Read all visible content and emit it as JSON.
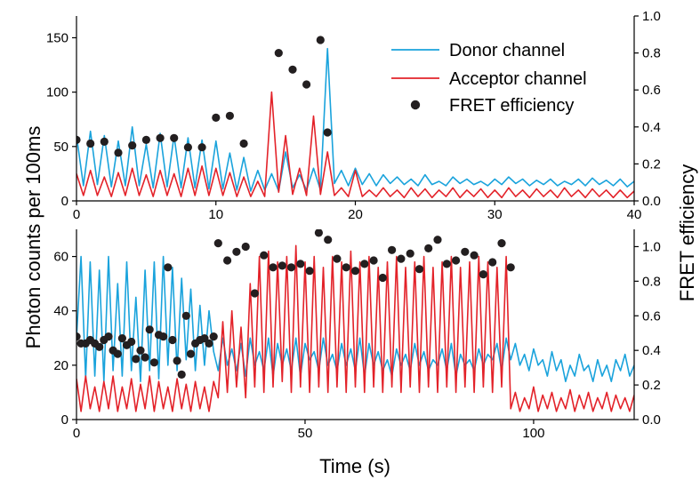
{
  "chart_data": [
    {
      "type": "line",
      "panel": "top",
      "xlim": [
        0,
        40
      ],
      "ylim": [
        0,
        170
      ],
      "y2lim": [
        0,
        1.0
      ],
      "x_ticks": [
        "0",
        "10",
        "20",
        "30",
        "40"
      ],
      "y_ticks": [
        "0",
        "50",
        "100",
        "150"
      ],
      "y2_ticks": [
        "0.0",
        "0.2",
        "0.4",
        "0.6",
        "0.8",
        "1.0"
      ],
      "legend_position": "top-right",
      "series": [
        {
          "name": "Donor channel",
          "color": "#1aa3dc",
          "axis": "left",
          "x": [
            0,
            0.5,
            1,
            1.5,
            2,
            2.5,
            3,
            3.5,
            4,
            4.5,
            5,
            5.5,
            6,
            6.5,
            7,
            7.5,
            8,
            8.5,
            9,
            9.5,
            10,
            10.5,
            11,
            11.5,
            12,
            12.5,
            13,
            13.5,
            14,
            14.5,
            15,
            15.5,
            16,
            16.5,
            17,
            17.5,
            18,
            18.5,
            19,
            19.5,
            20,
            20.5,
            21,
            21.5,
            22,
            22.5,
            23,
            23.5,
            24,
            24.5,
            25,
            25.5,
            26,
            26.5,
            27,
            27.5,
            28,
            28.5,
            29,
            29.5,
            30,
            30.5,
            31,
            31.5,
            32,
            32.5,
            33,
            33.5,
            34,
            34.5,
            35,
            35.5,
            36,
            36.5,
            37,
            37.5,
            38,
            38.5,
            39,
            39.5,
            40
          ],
          "values": [
            60,
            14,
            64,
            15,
            60,
            13,
            55,
            14,
            68,
            14,
            52,
            12,
            62,
            13,
            60,
            12,
            58,
            12,
            56,
            11,
            55,
            11,
            44,
            10,
            40,
            9,
            28,
            10,
            25,
            9,
            45,
            12,
            24,
            10,
            30,
            10,
            140,
            16,
            28,
            14,
            30,
            15,
            25,
            14,
            24,
            16,
            22,
            15,
            20,
            14,
            24,
            15,
            18,
            14,
            22,
            16,
            20,
            15,
            18,
            14,
            20,
            15,
            22,
            16,
            20,
            14,
            19,
            15,
            20,
            14,
            18,
            15,
            20,
            14,
            21,
            15,
            19,
            14,
            20,
            13,
            18
          ]
        },
        {
          "name": "Acceptor channel",
          "color": "#e32229",
          "axis": "left",
          "x": [
            0,
            0.5,
            1,
            1.5,
            2,
            2.5,
            3,
            3.5,
            4,
            4.5,
            5,
            5.5,
            6,
            6.5,
            7,
            7.5,
            8,
            8.5,
            9,
            9.5,
            10,
            10.5,
            11,
            11.5,
            12,
            12.5,
            13,
            13.5,
            14,
            14.5,
            15,
            15.5,
            16,
            16.5,
            17,
            17.5,
            18,
            18.5,
            19,
            19.5,
            20,
            20.5,
            21,
            21.5,
            22,
            22.5,
            23,
            23.5,
            24,
            24.5,
            25,
            25.5,
            26,
            26.5,
            27,
            27.5,
            28,
            28.5,
            29,
            29.5,
            30,
            30.5,
            31,
            31.5,
            32,
            32.5,
            33,
            33.5,
            34,
            34.5,
            35,
            35.5,
            36,
            36.5,
            37,
            37.5,
            38,
            38.5,
            39,
            39.5,
            40
          ],
          "values": [
            25,
            5,
            28,
            5,
            22,
            4,
            26,
            5,
            30,
            5,
            24,
            4,
            28,
            5,
            25,
            4,
            30,
            5,
            32,
            5,
            30,
            5,
            26,
            4,
            22,
            4,
            18,
            4,
            100,
            8,
            60,
            6,
            30,
            5,
            78,
            6,
            45,
            5,
            12,
            4,
            28,
            4,
            10,
            4,
            12,
            4,
            10,
            3,
            12,
            4,
            11,
            3,
            10,
            4,
            12,
            3,
            10,
            4,
            11,
            3,
            10,
            3,
            12,
            4,
            10,
            3,
            11,
            4,
            10,
            3,
            12,
            4,
            10,
            3,
            11,
            4,
            10,
            3,
            10,
            3,
            9
          ]
        },
        {
          "name": "FRET efficiency",
          "color": "#231f20",
          "axis": "right",
          "x": [
            0,
            1,
            2,
            3,
            4,
            5,
            6,
            7,
            8,
            9,
            10,
            11,
            12,
            14.5,
            15.5,
            16.5,
            17.5,
            18
          ],
          "values": [
            0.33,
            0.31,
            0.32,
            0.26,
            0.3,
            0.33,
            0.34,
            0.34,
            0.29,
            0.29,
            0.45,
            0.46,
            0.31,
            0.8,
            0.71,
            0.63,
            0.87,
            0.37
          ]
        }
      ]
    },
    {
      "type": "line",
      "panel": "bottom",
      "xlim": [
        0,
        122
      ],
      "ylim": [
        0,
        70
      ],
      "y2lim": [
        0,
        1.1
      ],
      "x_ticks": [
        "0",
        "50",
        "100"
      ],
      "y_ticks": [
        "0",
        "20",
        "40",
        "60"
      ],
      "y2_ticks": [
        "0.0",
        "0.2",
        "0.4",
        "0.6",
        "0.8",
        "1.0"
      ],
      "xlabel": "Time (s)",
      "series": [
        {
          "name": "Donor channel",
          "color": "#1aa3dc",
          "axis": "left",
          "x": [
            0,
            1,
            2,
            3,
            4,
            5,
            6,
            7,
            8,
            9,
            10,
            11,
            12,
            13,
            14,
            15,
            16,
            17,
            18,
            19,
            20,
            21,
            22,
            23,
            24,
            25,
            26,
            27,
            28,
            29,
            30,
            31,
            32,
            33,
            34,
            35,
            36,
            37,
            38,
            39,
            40,
            41,
            42,
            43,
            44,
            45,
            46,
            47,
            48,
            49,
            50,
            51,
            52,
            53,
            54,
            55,
            56,
            57,
            58,
            59,
            60,
            61,
            62,
            63,
            64,
            65,
            66,
            67,
            68,
            69,
            70,
            71,
            72,
            73,
            74,
            75,
            76,
            77,
            78,
            79,
            80,
            81,
            82,
            83,
            84,
            85,
            86,
            87,
            88,
            89,
            90,
            91,
            92,
            93,
            94,
            95,
            96,
            97,
            98,
            99,
            100,
            101,
            102,
            103,
            104,
            105,
            106,
            107,
            108,
            109,
            110,
            111,
            112,
            113,
            114,
            115,
            116,
            117,
            118,
            119,
            120,
            121,
            122
          ],
          "values": [
            30,
            60,
            15,
            58,
            16,
            55,
            14,
            60,
            18,
            50,
            16,
            58,
            18,
            45,
            14,
            55,
            18,
            58,
            15,
            60,
            20,
            56,
            18,
            52,
            22,
            48,
            18,
            42,
            20,
            40,
            25,
            18,
            30,
            20,
            26,
            18,
            28,
            16,
            30,
            20,
            25,
            18,
            30,
            16,
            28,
            20,
            26,
            18,
            30,
            16,
            28,
            22,
            25,
            18,
            30,
            20,
            24,
            18,
            28,
            20,
            26,
            18,
            30,
            16,
            28,
            20,
            25,
            18,
            22,
            16,
            26,
            20,
            24,
            18,
            28,
            20,
            25,
            18,
            22,
            20,
            26,
            18,
            28,
            16,
            24,
            20,
            22,
            18,
            26,
            20,
            24,
            22,
            28,
            18,
            30,
            22,
            28,
            20,
            24,
            18,
            26,
            20,
            22,
            16,
            25,
            18,
            22,
            14,
            20,
            16,
            24,
            18,
            20,
            14,
            22,
            16,
            20,
            14,
            22,
            18,
            24,
            16,
            20
          ]
        },
        {
          "name": "Acceptor channel",
          "color": "#e32229",
          "axis": "left",
          "x": [
            0,
            1,
            2,
            3,
            4,
            5,
            6,
            7,
            8,
            9,
            10,
            11,
            12,
            13,
            14,
            15,
            16,
            17,
            18,
            19,
            20,
            21,
            22,
            23,
            24,
            25,
            26,
            27,
            28,
            29,
            30,
            31,
            32,
            33,
            34,
            35,
            36,
            37,
            38,
            39,
            40,
            41,
            42,
            43,
            44,
            45,
            46,
            47,
            48,
            49,
            50,
            51,
            52,
            53,
            54,
            55,
            56,
            57,
            58,
            59,
            60,
            61,
            62,
            63,
            64,
            65,
            66,
            67,
            68,
            69,
            70,
            71,
            72,
            73,
            74,
            75,
            76,
            77,
            78,
            79,
            80,
            81,
            82,
            83,
            84,
            85,
            86,
            87,
            88,
            89,
            90,
            91,
            92,
            93,
            94,
            95,
            96,
            97,
            98,
            99,
            100,
            101,
            102,
            103,
            104,
            105,
            106,
            107,
            108,
            109,
            110,
            111,
            112,
            113,
            114,
            115,
            116,
            117,
            118,
            119,
            120,
            121,
            122
          ],
          "values": [
            15,
            3,
            16,
            4,
            12,
            3,
            14,
            4,
            16,
            3,
            12,
            4,
            15,
            3,
            13,
            4,
            16,
            3,
            14,
            4,
            12,
            3,
            15,
            4,
            13,
            3,
            14,
            4,
            12,
            3,
            14,
            8,
            36,
            10,
            40,
            12,
            34,
            8,
            50,
            12,
            60,
            10,
            62,
            12,
            58,
            14,
            60,
            10,
            64,
            12,
            58,
            10,
            60,
            12,
            56,
            10,
            60,
            12,
            58,
            10,
            62,
            12,
            58,
            10,
            60,
            12,
            56,
            10,
            58,
            12,
            60,
            10,
            56,
            12,
            58,
            10,
            60,
            12,
            56,
            10,
            58,
            12,
            60,
            10,
            56,
            12,
            58,
            10,
            60,
            12,
            58,
            10,
            56,
            12,
            60,
            4,
            10,
            3,
            8,
            4,
            12,
            3,
            9,
            4,
            10,
            3,
            8,
            4,
            11,
            3,
            9,
            4,
            10,
            3,
            8,
            4,
            10,
            3,
            9,
            4,
            8,
            3,
            9
          ]
        },
        {
          "name": "FRET efficiency",
          "color": "#231f20",
          "axis": "right",
          "x": [
            0,
            1,
            2,
            3,
            4,
            5,
            6,
            7,
            8,
            9,
            10,
            11,
            12,
            13,
            14,
            15,
            16,
            17,
            18,
            19,
            20,
            21,
            22,
            23,
            24,
            25,
            26,
            27,
            28,
            29,
            30,
            31,
            33,
            35,
            37,
            39,
            41,
            43,
            45,
            47,
            49,
            51,
            53,
            55,
            57,
            59,
            61,
            63,
            65,
            67,
            69,
            71,
            73,
            75,
            77,
            79,
            81,
            83,
            85,
            87,
            89,
            91,
            93,
            95
          ],
          "values": [
            0.48,
            0.44,
            0.44,
            0.46,
            0.44,
            0.42,
            0.46,
            0.48,
            0.4,
            0.38,
            0.47,
            0.43,
            0.45,
            0.35,
            0.4,
            0.36,
            0.52,
            0.33,
            0.49,
            0.48,
            0.88,
            0.46,
            0.34,
            0.26,
            0.6,
            0.38,
            0.44,
            0.46,
            0.47,
            0.44,
            0.48,
            1.02,
            0.92,
            0.97,
            1.0,
            0.73,
            0.95,
            0.88,
            0.89,
            0.88,
            0.9,
            0.86,
            1.08,
            1.04,
            0.93,
            0.88,
            0.86,
            0.9,
            0.92,
            0.82,
            0.98,
            0.93,
            0.96,
            0.87,
            0.99,
            1.04,
            0.9,
            0.92,
            0.97,
            0.95,
            0.84,
            0.91,
            1.02,
            0.88
          ]
        }
      ]
    }
  ],
  "figure": {
    "ylabel": "Photon counts per 100ms",
    "y2label": "FRET efficiency",
    "xlabel": "Time (s)"
  }
}
